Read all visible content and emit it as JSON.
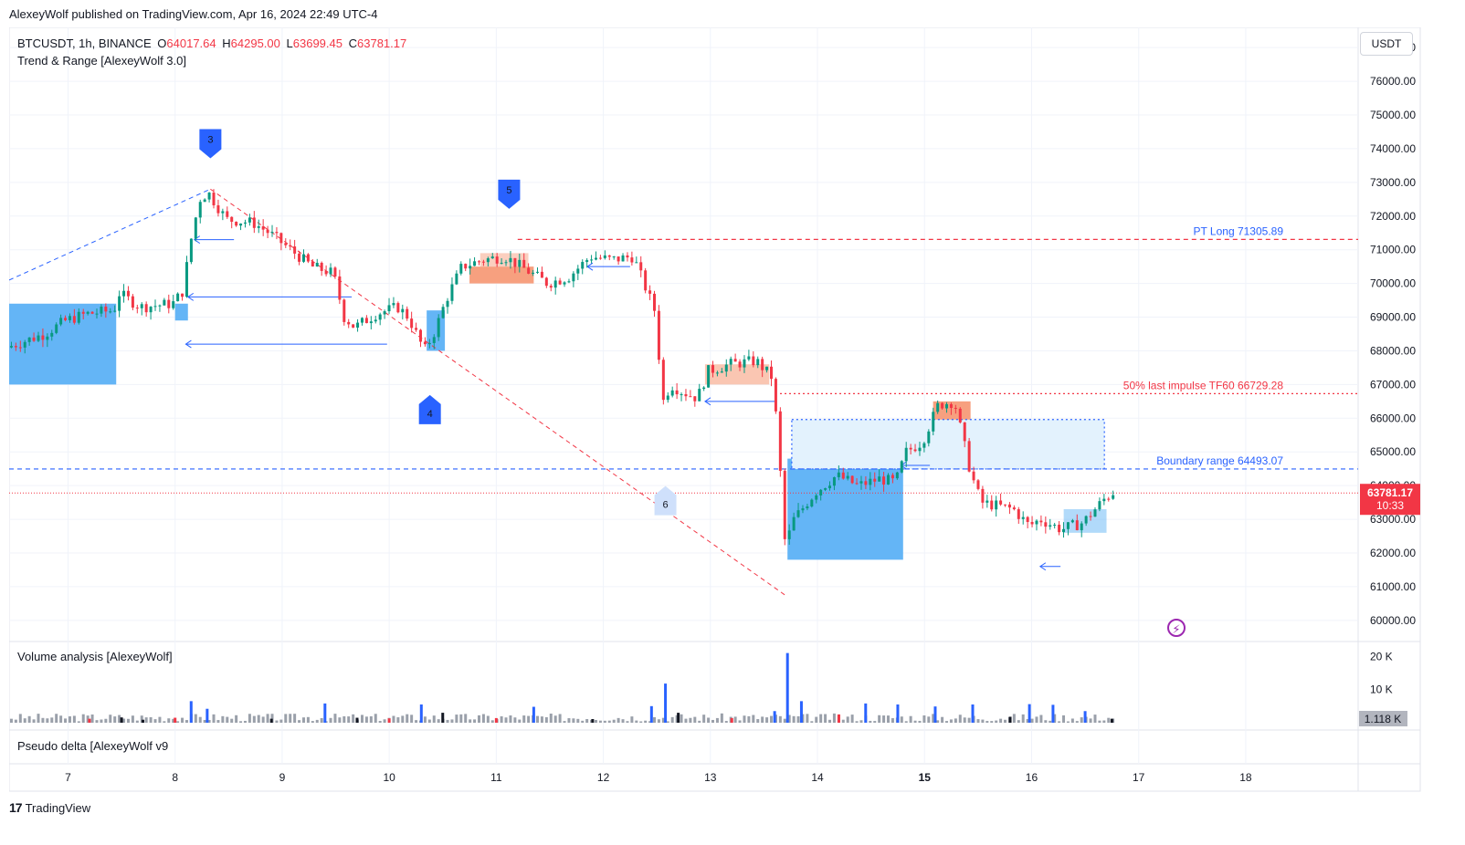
{
  "publisher": "AlexeyWolf published on TradingView.com, Apr 16, 2024 22:49 UTC-4",
  "legend": {
    "symbol": "BTCUSDT, 1h, BINANCE",
    "open_label": "O",
    "open": "64017.64",
    "high_label": "H",
    "high": "64295.00",
    "low_label": "L",
    "low": "63699.45",
    "close_label": "C",
    "close": "63781.17",
    "indicator": "Trend & Range [AlexeyWolf 3.0]"
  },
  "currency": "USDT",
  "price_badge": {
    "price": "63781.17",
    "countdown": "10:33",
    "color": "#f23645"
  },
  "volume_panel": {
    "title": "Volume analysis [AlexeyWolf]",
    "ticks": [
      "20 K",
      "10 K"
    ],
    "last": "1.118 K"
  },
  "delta_panel": {
    "title": "Pseudo delta [AlexeyWolf v9"
  },
  "brand": "TradingView",
  "colors": {
    "up": "#089981",
    "down": "#f23645",
    "blue": "#2962ff",
    "zone_blue": "#64b5f6",
    "zone_orange": "#f7a07f"
  },
  "chart_data": {
    "type": "candlestick",
    "symbol": "BTCUSDT",
    "timeframe": "1h",
    "x_ticks": [
      "7",
      "8",
      "9",
      "10",
      "11",
      "12",
      "13",
      "14",
      "15",
      "16",
      "17",
      "18"
    ],
    "y_ticks": [
      60000,
      61000,
      62000,
      63000,
      64000,
      65000,
      66000,
      67000,
      68000,
      69000,
      70000,
      71000,
      72000,
      73000,
      74000,
      75000,
      76000,
      77000
    ],
    "y_tick_labels": [
      "60000.00",
      "61000.00",
      "62000.00",
      "63000.00",
      "64000.00",
      "65000.00",
      "66000.00",
      "67000.00",
      "68000.00",
      "69000.00",
      "70000.00",
      "71000.00",
      "72000.00",
      "73000.00",
      "74000.00",
      "75000.00",
      "76000.00",
      "77000.00"
    ],
    "ylim": [
      59400,
      77600
    ],
    "xlim": [
      6.45,
      19.05
    ],
    "levels": [
      {
        "label": "PT Long 71305.89",
        "price": 71305.89,
        "color": "#f23645",
        "label_color": "#2962ff",
        "style": "dashed",
        "x_start": 11.2
      },
      {
        "label": "50% last impulse TF60 66729.28",
        "price": 66729.28,
        "color": "#f23645",
        "label_color": "#f23645",
        "style": "dotted",
        "x_start": 13.65
      },
      {
        "label": "Boundary range 64493.07",
        "price": 64493.07,
        "color": "#2962ff",
        "label_color": "#2962ff",
        "style": "dashed",
        "x_start": 6.45
      }
    ],
    "markers": [
      {
        "label": "3",
        "x": 8.33,
        "price": 74200,
        "shape": "down"
      },
      {
        "label": "5",
        "x": 11.12,
        "price": 72700,
        "shape": "down"
      },
      {
        "label": "4",
        "x": 10.38,
        "price": 66200,
        "shape": "up"
      },
      {
        "label": "6",
        "x": 12.58,
        "price": 63500,
        "shape": "up-light"
      }
    ],
    "series": [
      {
        "name": "",
        "points": [
          [
            6.45,
            68100
          ],
          [
            6.8,
            68500
          ],
          [
            7.0,
            68900
          ],
          [
            7.2,
            69100
          ],
          [
            7.45,
            69200
          ],
          [
            7.5,
            69700
          ],
          [
            7.7,
            69300
          ],
          [
            8.0,
            69400
          ],
          [
            8.1,
            69800
          ],
          [
            8.15,
            71000
          ],
          [
            8.25,
            72500
          ],
          [
            8.33,
            72700
          ],
          [
            8.5,
            71900
          ],
          [
            8.75,
            71800
          ],
          [
            8.9,
            71500
          ],
          [
            9.1,
            71000
          ],
          [
            9.3,
            70500
          ],
          [
            9.5,
            70300
          ],
          [
            9.6,
            69000
          ],
          [
            9.7,
            68700
          ],
          [
            9.9,
            69100
          ],
          [
            10.0,
            69200
          ],
          [
            10.1,
            69300
          ],
          [
            10.2,
            69000
          ],
          [
            10.35,
            68000
          ],
          [
            10.45,
            68600
          ],
          [
            10.55,
            69500
          ],
          [
            10.7,
            70500
          ],
          [
            10.9,
            70700
          ],
          [
            11.1,
            70800
          ],
          [
            11.3,
            70400
          ],
          [
            11.5,
            70000
          ],
          [
            11.7,
            70200
          ],
          [
            11.9,
            70800
          ],
          [
            12.1,
            70700
          ],
          [
            12.3,
            70800
          ],
          [
            12.4,
            70000
          ],
          [
            12.5,
            69200
          ],
          [
            12.58,
            66500
          ],
          [
            12.65,
            67000
          ],
          [
            12.75,
            66800
          ],
          [
            12.9,
            66600
          ],
          [
            13.0,
            67400
          ],
          [
            13.2,
            67600
          ],
          [
            13.45,
            67700
          ],
          [
            13.6,
            67200
          ],
          [
            13.65,
            65500
          ],
          [
            13.72,
            62200
          ],
          [
            13.8,
            63000
          ],
          [
            14.0,
            63800
          ],
          [
            14.2,
            64300
          ],
          [
            14.4,
            64000
          ],
          [
            14.6,
            64200
          ],
          [
            14.75,
            64100
          ],
          [
            14.85,
            65000
          ],
          [
            15.0,
            65300
          ],
          [
            15.15,
            66400
          ],
          [
            15.3,
            66500
          ],
          [
            15.45,
            64400
          ],
          [
            15.55,
            63500
          ],
          [
            15.7,
            63400
          ],
          [
            15.85,
            63300
          ],
          [
            16.0,
            62800
          ],
          [
            16.1,
            63000
          ],
          [
            16.3,
            62700
          ],
          [
            16.5,
            62900
          ],
          [
            16.7,
            63600
          ],
          [
            16.78,
            63800
          ]
        ]
      }
    ],
    "volume_scale": {
      "max": 22000,
      "ticks": [
        10000,
        20000
      ]
    },
    "volume": [
      {
        "x": 7.2,
        "v": 1200
      },
      {
        "x": 7.5,
        "v": 1600
      },
      {
        "x": 7.7,
        "v": 900
      },
      {
        "x": 8.0,
        "v": 1500
      },
      {
        "x": 8.15,
        "v": 6500
      },
      {
        "x": 8.3,
        "v": 4200
      },
      {
        "x": 8.9,
        "v": 1200
      },
      {
        "x": 9.4,
        "v": 5800
      },
      {
        "x": 9.7,
        "v": 1500
      },
      {
        "x": 10.0,
        "v": 1300
      },
      {
        "x": 10.3,
        "v": 5500
      },
      {
        "x": 10.5,
        "v": 3000
      },
      {
        "x": 11.0,
        "v": 1400
      },
      {
        "x": 11.35,
        "v": 4800
      },
      {
        "x": 11.9,
        "v": 1100
      },
      {
        "x": 12.45,
        "v": 5000
      },
      {
        "x": 12.58,
        "v": 11800
      },
      {
        "x": 12.7,
        "v": 3000
      },
      {
        "x": 13.2,
        "v": 1400
      },
      {
        "x": 13.6,
        "v": 3500
      },
      {
        "x": 13.72,
        "v": 21000
      },
      {
        "x": 13.85,
        "v": 6500
      },
      {
        "x": 14.2,
        "v": 2500
      },
      {
        "x": 14.45,
        "v": 5800
      },
      {
        "x": 14.75,
        "v": 5500
      },
      {
        "x": 15.1,
        "v": 4900
      },
      {
        "x": 15.45,
        "v": 5500
      },
      {
        "x": 15.8,
        "v": 1800
      },
      {
        "x": 15.98,
        "v": 5600
      },
      {
        "x": 16.2,
        "v": 5400
      },
      {
        "x": 16.5,
        "v": 3500
      },
      {
        "x": 16.75,
        "v": 1200
      }
    ]
  }
}
